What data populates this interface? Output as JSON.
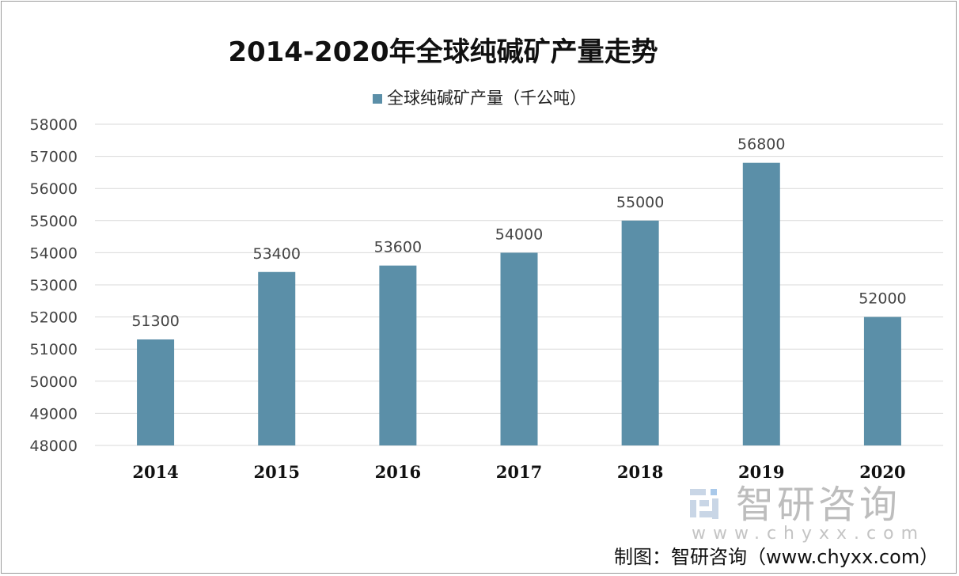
{
  "chart_data": {
    "type": "bar",
    "title": "2014-2020年全球纯碱矿产量走势",
    "categories": [
      "2014",
      "2015",
      "2016",
      "2017",
      "2018",
      "2019",
      "2020"
    ],
    "series": [
      {
        "name": "全球纯碱矿产量（千公吨）",
        "values": [
          51300,
          53400,
          53600,
          54000,
          55000,
          56800,
          52000
        ],
        "color": "#5b8fa8"
      }
    ],
    "ylim": [
      48000,
      58000
    ],
    "yticks": [
      48000,
      49000,
      50000,
      51000,
      52000,
      53000,
      54000,
      55000,
      56000,
      57000,
      58000
    ],
    "grid": true,
    "legend_position": "top",
    "xlabel": "",
    "ylabel": ""
  },
  "watermark": {
    "brand": "智研咨询",
    "url": "www.chyxx.com"
  },
  "source": "制图：智研咨询（www.chyxx.com）"
}
